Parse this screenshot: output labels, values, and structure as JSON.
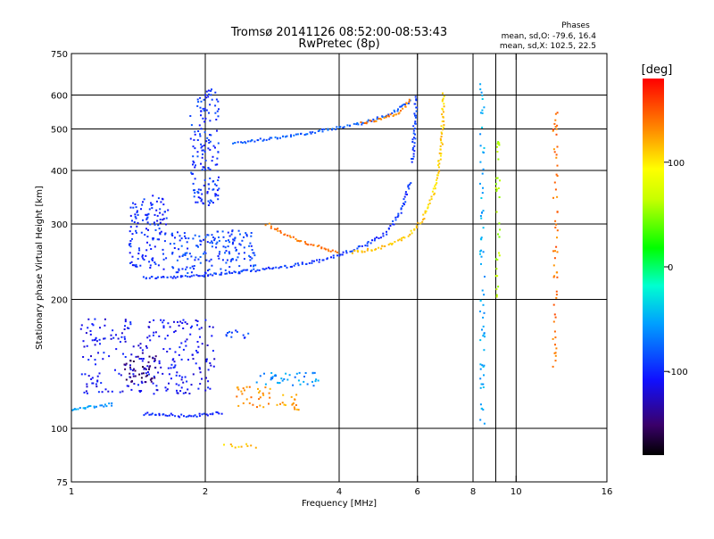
{
  "chart_data": {
    "type": "scatter",
    "title": "Tromsø 20141126 08:52:00-08:53:43",
    "subtitle": "RwPretec (8p)",
    "xlabel": "Frequency [MHz]",
    "ylabel": "Stationary phase Virtual Height [km]",
    "x_scale": "log",
    "y_scale": "log",
    "xlim": [
      1,
      16
    ],
    "ylim": [
      75,
      750
    ],
    "x_ticks": [
      1,
      2,
      4,
      6,
      8,
      10,
      16
    ],
    "x_tick_labels": [
      "1",
      "2",
      "4",
      "6",
      "8",
      "10",
      "16"
    ],
    "x_gridlines": [
      2,
      4,
      6,
      8,
      9,
      10
    ],
    "y_ticks": [
      75,
      100,
      200,
      300,
      400,
      500,
      600,
      750
    ],
    "y_tick_labels": [
      "75",
      "100",
      "200",
      "300",
      "400",
      "500",
      "600",
      "750"
    ],
    "y_gridlines": [
      100,
      200,
      300,
      400,
      500,
      600
    ],
    "grid": true,
    "stats": {
      "heading": "Phases",
      "line_o": "mean, sd,O: -79.6, 16.4",
      "line_x": "mean, sd,X: 102.5, 22.5"
    },
    "colorbar": {
      "label": "[deg]",
      "range": [
        -180,
        180
      ],
      "ticks": [
        100,
        0,
        -100
      ],
      "tick_labels": [
        "100",
        "0",
        "-100"
      ],
      "colormap": "rainbow"
    },
    "traces": [
      {
        "x": [
          1.45,
          1.7,
          2.0,
          2.4,
          3.0,
          3.6,
          4.1,
          4.6,
          5.1,
          5.5,
          5.8
        ],
        "y": [
          225,
          225,
          228,
          232,
          238,
          246,
          256,
          268,
          285,
          320,
          380
        ],
        "phase": -95
      },
      {
        "x": [
          5.85,
          5.9,
          5.93,
          5.95
        ],
        "y": [
          420,
          480,
          540,
          600
        ],
        "phase": -90
      },
      {
        "x": [
          4.3,
          4.8,
          5.3,
          5.8,
          6.2,
          6.5,
          6.7,
          6.8,
          6.85,
          6.88
        ],
        "y": [
          258,
          262,
          270,
          285,
          310,
          350,
          400,
          460,
          530,
          610
        ],
        "phase": 110
      },
      {
        "x": [
          2.75,
          3.0,
          3.3,
          3.7,
          4.0
        ],
        "y": [
          300,
          285,
          272,
          263,
          258
        ],
        "phase": 140
      },
      {
        "x": [
          2.3,
          2.8,
          3.3,
          3.8,
          4.3,
          4.8,
          5.3,
          5.8
        ],
        "y": [
          462,
          475,
          487,
          498,
          510,
          525,
          545,
          585
        ],
        "phase": -80
      },
      {
        "x": [
          4.5,
          5.0,
          5.5,
          5.8
        ],
        "y": [
          515,
          528,
          548,
          590
        ],
        "phase": 135
      },
      {
        "x": [
          1.45,
          1.6,
          1.75,
          1.9,
          2.05,
          2.2
        ],
        "y": [
          108,
          108,
          107,
          107,
          108,
          109
        ],
        "phase": -100
      },
      {
        "x": [
          1.0,
          1.1,
          1.25
        ],
        "y": [
          110,
          112,
          114
        ],
        "phase": -55
      }
    ],
    "clusters": [
      {
        "x_range": [
          1.05,
          2.1
        ],
        "y_range": [
          120,
          180
        ],
        "phase": -110
      },
      {
        "x_range": [
          1.3,
          1.55
        ],
        "y_range": [
          128,
          150
        ],
        "phase": -150
      },
      {
        "x_range": [
          1.85,
          2.15
        ],
        "y_range": [
          330,
          620
        ],
        "phase": -95
      },
      {
        "x_range": [
          1.35,
          1.65
        ],
        "y_range": [
          235,
          350
        ],
        "phase": -100
      },
      {
        "x_range": [
          1.65,
          2.6
        ],
        "y_range": [
          230,
          290
        ],
        "phase": -90
      },
      {
        "x_range": [
          2.35,
          2.8
        ],
        "y_range": [
          112,
          125
        ],
        "phase": 130
      },
      {
        "x_range": [
          2.9,
          3.3
        ],
        "y_range": [
          110,
          120
        ],
        "phase": 125
      },
      {
        "x_range": [
          2.6,
          3.6
        ],
        "y_range": [
          125,
          135
        ],
        "phase": -60
      },
      {
        "x_range": [
          2.2,
          2.5
        ],
        "y_range": [
          160,
          170
        ],
        "phase": -90
      },
      {
        "x_range": [
          2.2,
          2.6
        ],
        "y_range": [
          90,
          92
        ],
        "phase": 110
      },
      {
        "x_range": [
          8.3,
          8.5
        ],
        "y_range": [
          100,
          640
        ],
        "phase": -50
      },
      {
        "x_range": [
          9.0,
          9.2
        ],
        "y_range": [
          200,
          500
        ],
        "phase": 60
      },
      {
        "x_range": [
          12.1,
          12.4
        ],
        "y_range": [
          130,
          550
        ],
        "phase": 140
      }
    ]
  }
}
